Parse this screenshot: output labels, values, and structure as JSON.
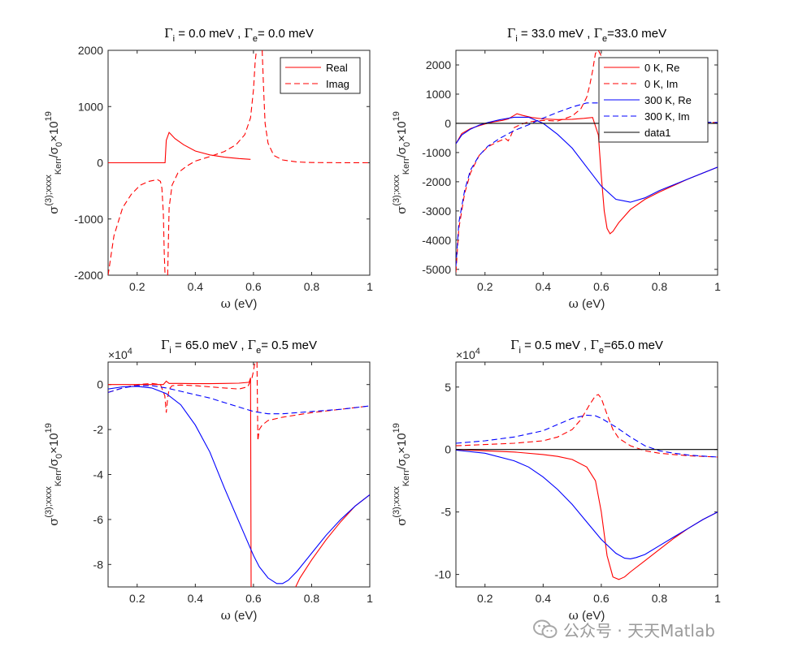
{
  "watermark": {
    "text": "公众号 · 天天Matlab",
    "icon": "wechat-icon"
  },
  "colors": {
    "red": "#ff0000",
    "blue": "#0000ff",
    "black": "#000000",
    "axis": "#262626"
  },
  "chart_data": [
    {
      "type": "line",
      "title_parts": {
        "g1": "Γ",
        "s1": "i",
        "m": " =  0.0 meV , ",
        "g2": "Γ",
        "s2": "e",
        "e": "= 0.0 meV"
      },
      "xlabel_parts": {
        "sym": "ω",
        "rest": " (eV)"
      },
      "ylabel_parts": {
        "sym": "σ",
        "sup": "(3);xxxx",
        "sub": "Kerr",
        "mid": "/σ",
        "sub0": "0",
        "exp": "×10",
        "sup19": "19"
      },
      "xlim": [
        0.1,
        1.0
      ],
      "ylim": [
        -2000,
        2000
      ],
      "xticks": [
        0.2,
        0.4,
        0.6,
        0.8,
        1.0
      ],
      "xtick_labels": [
        "0.2",
        "0.4",
        "0.6",
        "0.8",
        "1"
      ],
      "yticks": [
        -2000,
        -1000,
        0,
        1000,
        2000
      ],
      "ytick_labels": [
        "-2000",
        "-1000",
        "0",
        "1000",
        "2000"
      ],
      "exponent_label": null,
      "legend": {
        "position": "top-right",
        "entries": [
          "Real",
          "Imag"
        ]
      },
      "series": [
        {
          "name": "Real",
          "color": "#ff0000",
          "dash": "solid",
          "x": [
            0.1,
            0.2,
            0.29,
            0.296,
            0.3,
            0.31,
            0.33,
            0.36,
            0.4,
            0.45,
            0.5,
            0.55,
            0.59
          ],
          "y": [
            0,
            0,
            0,
            0,
            400,
            540,
            430,
            320,
            210,
            140,
            100,
            75,
            60
          ]
        },
        {
          "name": "Imag",
          "color": "#ff0000",
          "dash": "dashed",
          "x": [
            0.1,
            0.12,
            0.15,
            0.18,
            0.21,
            0.24,
            0.27,
            0.28,
            0.285,
            0.29,
            0.293,
            0.296
          ],
          "y": [
            -2000,
            -1300,
            -800,
            -560,
            -400,
            -330,
            -300,
            -330,
            -450,
            -900,
            -1600,
            -2000
          ],
          "x2": [
            0.305,
            0.31,
            0.32,
            0.34,
            0.37,
            0.4,
            0.45,
            0.5,
            0.54,
            0.57,
            0.59,
            0.6,
            0.606,
            0.61
          ],
          "y2": [
            -2000,
            -800,
            -400,
            -180,
            -60,
            30,
            110,
            200,
            320,
            500,
            800,
            1300,
            1800,
            2000
          ],
          "x3": [
            0.63,
            0.635,
            0.64,
            0.65,
            0.67,
            0.7,
            0.75,
            0.8,
            0.9,
            1.0
          ],
          "y3": [
            2000,
            1300,
            700,
            350,
            130,
            50,
            15,
            5,
            2,
            0
          ]
        }
      ]
    },
    {
      "type": "line",
      "title_parts": {
        "g1": "Γ",
        "s1": "i",
        "m": " = 33.0 meV , ",
        "g2": "Γ",
        "s2": "e",
        "e": "=33.0 meV"
      },
      "xlabel_parts": {
        "sym": "ω",
        "rest": " (eV)"
      },
      "ylabel_parts": {
        "sym": "σ",
        "sup": "(3);xxxx",
        "sub": "Kerr",
        "mid": "/σ",
        "sub0": "0",
        "exp": "×10",
        "sup19": "19"
      },
      "xlim": [
        0.1,
        1.0
      ],
      "ylim": [
        -5200,
        2500
      ],
      "xticks": [
        0.2,
        0.4,
        0.6,
        0.8,
        1.0
      ],
      "xtick_labels": [
        "0.2",
        "0.4",
        "0.6",
        "0.8",
        "1"
      ],
      "yticks": [
        -5000,
        -4000,
        -3000,
        -2000,
        -1000,
        0,
        1000,
        2000
      ],
      "ytick_labels": [
        "-5000",
        "-4000",
        "-3000",
        "-2000",
        "-1000",
        "0",
        "1000",
        "2000"
      ],
      "exponent_label": null,
      "legend": {
        "position": "top-right",
        "entries": [
          "0 K, Re",
          "0 K, Im",
          "300 K, Re",
          "300 K, Im",
          "data1"
        ]
      },
      "series": [
        {
          "name": "0 K, Re",
          "color": "#ff0000",
          "dash": "solid",
          "x": [
            0.1,
            0.12,
            0.15,
            0.18,
            0.2,
            0.23,
            0.26,
            0.28,
            0.3,
            0.31,
            0.33,
            0.36,
            0.4,
            0.45,
            0.5,
            0.54,
            0.57,
            0.59,
            0.6,
            0.61,
            0.62,
            0.63,
            0.64,
            0.66,
            0.7,
            0.75,
            0.8,
            0.9,
            1.0
          ],
          "y": [
            -700,
            -350,
            -180,
            -80,
            -20,
            50,
            100,
            150,
            270,
            330,
            270,
            200,
            150,
            130,
            140,
            170,
            200,
            -400,
            -1800,
            -3000,
            -3600,
            -3780,
            -3700,
            -3400,
            -2950,
            -2600,
            -2350,
            -1900,
            -1500
          ]
        },
        {
          "name": "0 K, Im",
          "color": "#ff0000",
          "dash": "dashed",
          "x": [
            0.1,
            0.11,
            0.13,
            0.15,
            0.18,
            0.21,
            0.24,
            0.27,
            0.28,
            0.29,
            0.3,
            0.32,
            0.35,
            0.4,
            0.45,
            0.5,
            0.53,
            0.55,
            0.56,
            0.57,
            0.58,
            0.59,
            0.6,
            0.61,
            0.62,
            0.63,
            0.64,
            0.66,
            0.7,
            0.8,
            0.9,
            1.0
          ],
          "y": [
            -5100,
            -3600,
            -2400,
            -1700,
            -1100,
            -800,
            -650,
            -520,
            -600,
            -400,
            -150,
            -50,
            50,
            100,
            80,
            250,
            500,
            900,
            1300,
            1800,
            2400,
            2500,
            2300,
            1500,
            800,
            400,
            200,
            80,
            30,
            20,
            20,
            30
          ]
        },
        {
          "name": "300 K, Re",
          "color": "#0000ff",
          "dash": "solid",
          "x": [
            0.1,
            0.12,
            0.15,
            0.18,
            0.21,
            0.25,
            0.3,
            0.35,
            0.4,
            0.45,
            0.5,
            0.55,
            0.6,
            0.65,
            0.7,
            0.75,
            0.8,
            0.9,
            1.0
          ],
          "y": [
            -700,
            -400,
            -200,
            -60,
            30,
            120,
            210,
            210,
            0,
            -380,
            -850,
            -1500,
            -2150,
            -2600,
            -2700,
            -2550,
            -2300,
            -1900,
            -1500
          ]
        },
        {
          "name": "300 K, Im",
          "color": "#0000ff",
          "dash": "dashed",
          "x": [
            0.1,
            0.11,
            0.13,
            0.15,
            0.18,
            0.21,
            0.25,
            0.3,
            0.35,
            0.4,
            0.45,
            0.5,
            0.55,
            0.6,
            0.65,
            0.7,
            0.75,
            0.8,
            0.9,
            1.0
          ],
          "y": [
            -4900,
            -3400,
            -2300,
            -1600,
            -1100,
            -780,
            -520,
            -250,
            -50,
            180,
            380,
            560,
            700,
            700,
            520,
            330,
            200,
            120,
            60,
            30
          ]
        },
        {
          "name": "data1",
          "color": "#000000",
          "dash": "solid",
          "x": [
            0.1,
            1.0
          ],
          "y": [
            0,
            0
          ]
        }
      ]
    },
    {
      "type": "line",
      "title_parts": {
        "g1": "Γ",
        "s1": "i",
        "m": " = 65.0 meV , ",
        "g2": "Γ",
        "s2": "e",
        "e": "= 0.5 meV"
      },
      "xlabel_parts": {
        "sym": "ω",
        "rest": " (eV)"
      },
      "ylabel_parts": {
        "sym": "σ",
        "sup": "(3);xxxx",
        "sub": "Kerr",
        "mid": "/σ",
        "sub0": "0",
        "exp": "×10",
        "sup19": "19"
      },
      "xlim": [
        0.1,
        1.0
      ],
      "ylim": [
        -9,
        1
      ],
      "xticks": [
        0.2,
        0.4,
        0.6,
        0.8,
        1.0
      ],
      "xtick_labels": [
        "0.2",
        "0.4",
        "0.6",
        "0.8",
        "1"
      ],
      "yticks": [
        -8,
        -6,
        -4,
        -2,
        0
      ],
      "ytick_labels": [
        "-8",
        "-6",
        "-4",
        "-2",
        "0"
      ],
      "exponent_label": {
        "base": "×10",
        "power": "4"
      },
      "legend": null,
      "series": [
        {
          "name": "",
          "color": "#ff0000",
          "dash": "solid",
          "x": [
            0.1,
            0.15,
            0.2,
            0.25,
            0.29,
            0.3,
            0.305,
            0.31,
            0.35,
            0.4,
            0.45,
            0.5,
            0.55,
            0.585,
            0.59,
            0.592
          ],
          "y": [
            0,
            0,
            0,
            0,
            0,
            0.15,
            0.1,
            0.05,
            0.05,
            0.04,
            0.04,
            0.05,
            0.06,
            0.1,
            0.3,
            -9.0
          ],
          "x2": [
            0.745,
            0.76,
            0.8,
            0.85,
            0.9,
            0.95,
            1.0
          ],
          "y2": [
            -9.0,
            -8.6,
            -7.8,
            -6.9,
            -6.1,
            -5.4,
            -4.9
          ]
        },
        {
          "name": "",
          "color": "#ff0000",
          "dash": "dashed",
          "x": [
            0.1,
            0.15,
            0.2,
            0.25,
            0.28,
            0.295,
            0.3,
            0.305,
            0.31,
            0.32,
            0.35,
            0.4,
            0.45,
            0.5,
            0.55,
            0.58,
            0.595,
            0.6,
            0.605
          ],
          "y": [
            -0.35,
            -0.15,
            0.0,
            0.05,
            0.0,
            -0.5,
            -1.25,
            -0.6,
            -0.2,
            -0.05,
            -0.02,
            -0.05,
            -0.1,
            -0.15,
            -0.2,
            -0.1,
            0.3,
            0.6,
            1.0
          ],
          "x2": [
            0.612,
            0.615,
            0.62,
            0.63,
            0.65,
            0.7,
            0.8,
            0.9,
            1.0
          ],
          "y2": [
            1.0,
            -2.5,
            -2.0,
            -1.8,
            -1.6,
            -1.45,
            -1.25,
            -1.1,
            -0.95
          ]
        },
        {
          "name": "",
          "color": "#0000ff",
          "dash": "solid",
          "x": [
            0.1,
            0.15,
            0.2,
            0.25,
            0.3,
            0.35,
            0.4,
            0.45,
            0.5,
            0.55,
            0.6,
            0.62,
            0.65,
            0.68,
            0.7,
            0.72,
            0.75,
            0.8,
            0.85,
            0.9,
            0.95,
            1.0
          ],
          "y": [
            -0.2,
            -0.1,
            -0.08,
            -0.15,
            -0.4,
            -0.9,
            -1.8,
            -3.0,
            -4.6,
            -6.1,
            -7.6,
            -8.1,
            -8.6,
            -8.85,
            -8.85,
            -8.7,
            -8.3,
            -7.5,
            -6.7,
            -6.0,
            -5.4,
            -4.9
          ]
        },
        {
          "name": "",
          "color": "#0000ff",
          "dash": "dashed",
          "x": [
            0.1,
            0.15,
            0.2,
            0.25,
            0.3,
            0.35,
            0.4,
            0.45,
            0.5,
            0.55,
            0.6,
            0.65,
            0.7,
            0.8,
            0.9,
            1.0
          ],
          "y": [
            -0.35,
            -0.15,
            -0.05,
            -0.05,
            -0.15,
            -0.3,
            -0.45,
            -0.6,
            -0.8,
            -1.0,
            -1.2,
            -1.3,
            -1.3,
            -1.2,
            -1.1,
            -0.95
          ]
        }
      ]
    },
    {
      "type": "line",
      "title_parts": {
        "g1": "Γ",
        "s1": "i",
        "m": " =  0.5 meV , ",
        "g2": "Γ",
        "s2": "e",
        "e": "=65.0 meV"
      },
      "xlabel_parts": {
        "sym": "ω",
        "rest": " (eV)"
      },
      "ylabel_parts": {
        "sym": "σ",
        "sup": "(3);xxxx",
        "sub": "Kerr",
        "mid": "/σ",
        "sub0": "0",
        "exp": "×10",
        "sup19": "19"
      },
      "xlim": [
        0.1,
        1.0
      ],
      "ylim": [
        -11,
        7
      ],
      "xticks": [
        0.2,
        0.4,
        0.6,
        0.8,
        1.0
      ],
      "xtick_labels": [
        "0.2",
        "0.4",
        "0.6",
        "0.8",
        "1"
      ],
      "yticks": [
        -10,
        -5,
        0,
        5
      ],
      "ytick_labels": [
        "-10",
        "-5",
        "0",
        "5"
      ],
      "exponent_label": {
        "base": "×10",
        "power": "4"
      },
      "legend": null,
      "series": [
        {
          "name": "",
          "color": "#ff0000",
          "dash": "solid",
          "x": [
            0.1,
            0.2,
            0.3,
            0.4,
            0.45,
            0.5,
            0.55,
            0.58,
            0.6,
            0.62,
            0.64,
            0.66,
            0.68,
            0.7,
            0.75,
            0.8,
            0.85,
            0.9,
            0.95,
            1.0
          ],
          "y": [
            0,
            -0.1,
            -0.2,
            -0.4,
            -0.55,
            -0.8,
            -1.4,
            -2.5,
            -5.0,
            -8.5,
            -10.2,
            -10.4,
            -10.2,
            -9.8,
            -8.9,
            -8.0,
            -7.1,
            -6.3,
            -5.6,
            -5.0
          ]
        },
        {
          "name": "",
          "color": "#ff0000",
          "dash": "dashed",
          "x": [
            0.1,
            0.2,
            0.3,
            0.4,
            0.45,
            0.5,
            0.53,
            0.56,
            0.58,
            0.59,
            0.6,
            0.62,
            0.64,
            0.66,
            0.7,
            0.75,
            0.8,
            0.85,
            0.9,
            1.0
          ],
          "y": [
            0.3,
            0.4,
            0.5,
            0.7,
            1.0,
            1.6,
            2.4,
            3.6,
            4.3,
            4.4,
            4.1,
            2.8,
            1.6,
            0.9,
            0.3,
            -0.1,
            -0.3,
            -0.4,
            -0.5,
            -0.6
          ]
        },
        {
          "name": "",
          "color": "#0000ff",
          "dash": "solid",
          "x": [
            0.1,
            0.2,
            0.3,
            0.35,
            0.4,
            0.45,
            0.5,
            0.55,
            0.6,
            0.65,
            0.68,
            0.7,
            0.72,
            0.75,
            0.8,
            0.85,
            0.9,
            0.95,
            1.0
          ],
          "y": [
            -0.05,
            -0.3,
            -0.9,
            -1.4,
            -2.2,
            -3.2,
            -4.4,
            -5.8,
            -7.2,
            -8.3,
            -8.7,
            -8.75,
            -8.65,
            -8.4,
            -7.7,
            -7.0,
            -6.3,
            -5.6,
            -5.0
          ]
        },
        {
          "name": "",
          "color": "#0000ff",
          "dash": "dashed",
          "x": [
            0.1,
            0.2,
            0.3,
            0.4,
            0.45,
            0.5,
            0.55,
            0.58,
            0.6,
            0.65,
            0.7,
            0.75,
            0.8,
            0.85,
            0.9,
            1.0
          ],
          "y": [
            0.5,
            0.7,
            1.0,
            1.5,
            2.0,
            2.5,
            2.75,
            2.7,
            2.5,
            1.8,
            1.0,
            0.3,
            -0.1,
            -0.3,
            -0.45,
            -0.6
          ]
        },
        {
          "name": "",
          "color": "#000000",
          "dash": "solid",
          "x": [
            0.1,
            1.0
          ],
          "y": [
            0,
            0
          ]
        }
      ]
    }
  ]
}
